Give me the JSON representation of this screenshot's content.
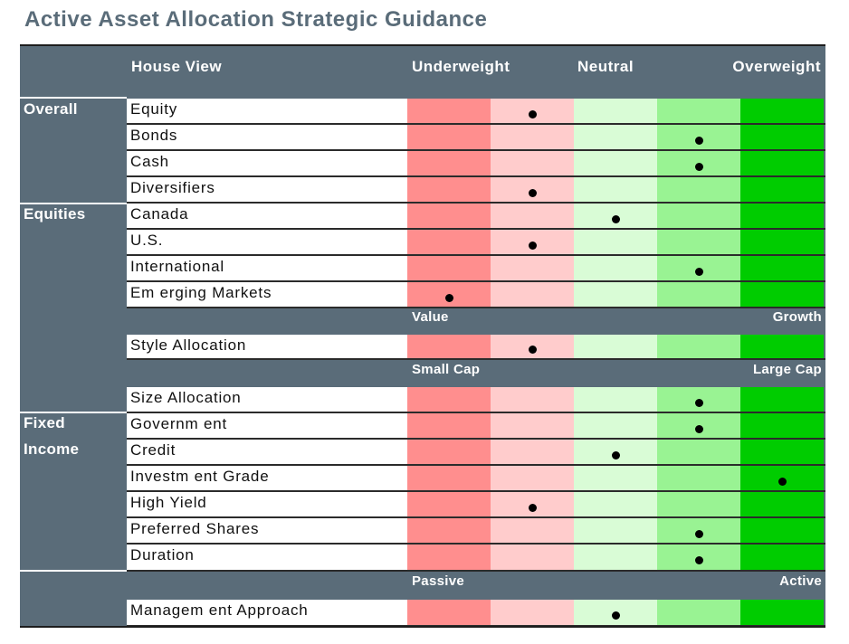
{
  "title": "Active Asset Allocation Strategic Guidance",
  "colors": {
    "panel": "#5a6c79",
    "col_strong_under": "#ff8e8e",
    "col_under": "#ffcccc",
    "col_neutral": "#d9fcd6",
    "col_over": "#99f393",
    "col_strong_over": "#00cc00"
  },
  "header": {
    "house_view": "House View",
    "underweight": "Underweight",
    "neutral": "Neutral",
    "overweight": "Overweight"
  },
  "sections": {
    "overall": "Overall",
    "equities": "Equities",
    "fixed": "Fixed",
    "income": "Income"
  },
  "scales": {
    "value": "Value",
    "growth": "Growth",
    "small_cap": "Small Cap",
    "large_cap": "Large Cap",
    "passive": "Passive",
    "active": "Active"
  },
  "rows": [
    {
      "label": "Equity",
      "position": 2
    },
    {
      "label": "Bonds",
      "position": 4
    },
    {
      "label": "Cash",
      "position": 4
    },
    {
      "label": "Diversifiers",
      "position": 2
    },
    {
      "label": "Canada",
      "position": 3
    },
    {
      "label": "U.S.",
      "position": 2
    },
    {
      "label": "International",
      "position": 4
    },
    {
      "label": "Em erging Markets",
      "position": 1
    },
    {
      "label": "Style Allocation",
      "position": 2
    },
    {
      "label": "Size Allocation",
      "position": 4
    },
    {
      "label": "Governm ent",
      "position": 4
    },
    {
      "label": "Credit",
      "position": 3
    },
    {
      "label": "Investm ent Grade",
      "position": 5
    },
    {
      "label": "High Yield",
      "position": 2
    },
    {
      "label": "Preferred Shares",
      "position": 4
    },
    {
      "label": "Duration",
      "position": 4
    },
    {
      "label": "Managem ent Approach",
      "position": 3
    }
  ]
}
